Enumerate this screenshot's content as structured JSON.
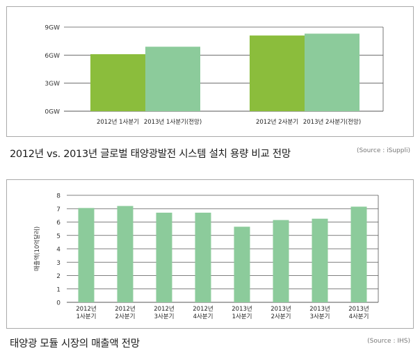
{
  "charts": [
    {
      "caption": "2012년 vs. 2013년 글로벌 태양광발전 시스템 설치 용량 비교 전망",
      "source": "(Source : iSuppli)"
    },
    {
      "caption": "태양광 모듈 시장의 매출액 전망",
      "source": "(Source : IHS)"
    }
  ],
  "chart_data": [
    {
      "type": "bar",
      "title": "2012년 vs. 2013년 글로벌 태양광발전 시스템 설치 용량 비교 전망",
      "xlabel": "",
      "ylabel": "",
      "ylim": [
        0,
        9
      ],
      "yticks": [
        "0GW",
        "3GW",
        "6GW",
        "9GW"
      ],
      "ytick_values": [
        0,
        3,
        6,
        9
      ],
      "grid": true,
      "categories": [
        "2012년 1사분기",
        "2013년 1사분기(전망)",
        "2012년 2사분기",
        "2013년 2사분기(전망)"
      ],
      "values": [
        6.1,
        6.9,
        8.1,
        8.3
      ],
      "colors": [
        "#8bbd3c",
        "#8ccb9b",
        "#8bbd3c",
        "#8ccb9b"
      ]
    },
    {
      "type": "bar",
      "title": "태양광 모듈 시장의 매출액 전망",
      "xlabel": "",
      "ylabel": "매출액(10억달러)",
      "ylim": [
        0,
        8
      ],
      "yticks": [
        "0",
        "1",
        "2",
        "3",
        "4",
        "5",
        "6",
        "7",
        "8"
      ],
      "ytick_values": [
        0,
        1,
        2,
        3,
        4,
        5,
        6,
        7,
        8
      ],
      "grid": true,
      "categories": [
        [
          "2012년",
          "1사분기"
        ],
        [
          "2012년",
          "2사분기"
        ],
        [
          "2012년",
          "3사분기"
        ],
        [
          "2012년",
          "4사분기"
        ],
        [
          "2013년",
          "1사분기"
        ],
        [
          "2013년",
          "2사분기"
        ],
        [
          "2013년",
          "3사분기"
        ],
        [
          "2013년",
          "4사분기"
        ]
      ],
      "values": [
        7.05,
        7.2,
        6.7,
        6.7,
        5.65,
        6.15,
        6.25,
        7.15
      ],
      "colors": [
        "#8ccb9b"
      ]
    }
  ]
}
